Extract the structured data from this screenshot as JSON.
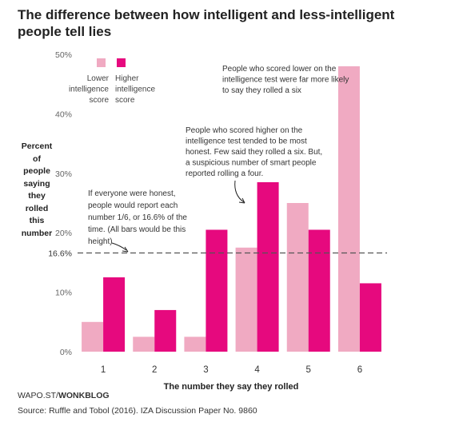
{
  "title_lines": [
    "The difference between how intelligent and less-intelligent",
    "people tell lies"
  ],
  "ylabel_lines": [
    "Percent",
    "of",
    "people",
    "saying",
    "they",
    "rolled",
    "this",
    "number"
  ],
  "footer": {
    "source_prefix": "WAPO.ST/",
    "source_brand": "WONKBLOG",
    "citation": "Source: Ruffle and Tobol (2016). IZA Discussion Paper No. 9860"
  },
  "colors": {
    "lower": "#f0aac2",
    "higher": "#e6097e",
    "axis_text": "#666666",
    "reference_line": "#555555",
    "grid": "#dddddd"
  },
  "chart_data": {
    "type": "bar",
    "title": "The difference between how intelligent and less-intelligent people tell lies",
    "xlabel": "The number they say they rolled",
    "ylabel": "Percent of people saying they rolled this number",
    "categories": [
      "1",
      "2",
      "3",
      "4",
      "5",
      "6"
    ],
    "series": [
      {
        "name": "Lower intelligence score",
        "legend_lines": [
          "Lower",
          "intelligence",
          "score"
        ],
        "values": [
          5,
          2.5,
          2.5,
          17.5,
          25,
          48
        ]
      },
      {
        "name": "Higher intelligence score",
        "legend_lines": [
          "Higher",
          "intelligence",
          "score"
        ],
        "values": [
          12.5,
          7,
          20.5,
          28.5,
          20.5,
          11.5
        ]
      }
    ],
    "ylim": [
      0,
      50
    ],
    "yticks": [
      0,
      10,
      20,
      30,
      40,
      50
    ],
    "ytick_labels": [
      "0%",
      "10%",
      "20%",
      "30%",
      "40%",
      "50%"
    ],
    "reference_line": {
      "value": 16.6,
      "label": "16.6%"
    },
    "grid": false,
    "legend_position": "top-left",
    "annotations": [
      {
        "id": "honest",
        "lines": [
          "If everyone were honest,",
          "people would report each",
          "number 1/6, or 16.6% of the",
          "time. (All bars would be this",
          "height)"
        ]
      },
      {
        "id": "higher",
        "lines": [
          "People who scored higher on the",
          "intelligence test tended to be most",
          "honest. Few said they rolled a six. But,",
          "a suspicious number of smart people",
          "reported rolling a four."
        ]
      },
      {
        "id": "lower",
        "lines": [
          "People who scored lower on the",
          "intelligence test were far more likely",
          "to say they rolled a six"
        ]
      }
    ]
  }
}
